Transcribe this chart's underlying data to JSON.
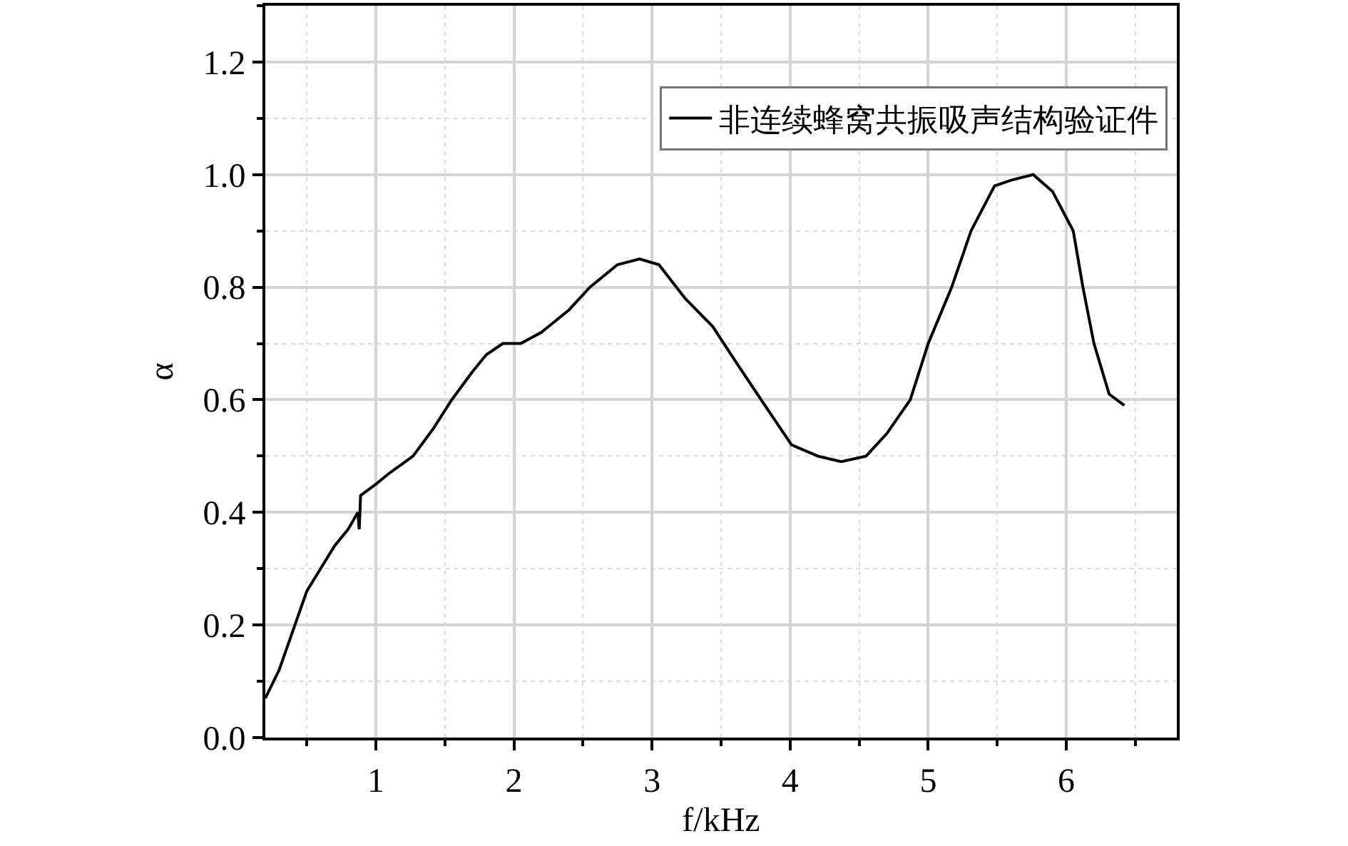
{
  "chart_data": {
    "type": "line",
    "xlabel": "f/kHz",
    "ylabel": "α",
    "xlim": [
      0.2,
      6.8
    ],
    "ylim": [
      0,
      1.3
    ],
    "xticks": [
      1,
      2,
      3,
      4,
      5,
      6
    ],
    "yticks": [
      {
        "value": 0,
        "label": "0.0"
      },
      0.2,
      0.4,
      0.6,
      0.8,
      {
        "value": 1,
        "label": "1.0"
      },
      1.2
    ],
    "grid": true,
    "legend": "top right",
    "line_style": "solid",
    "marker": "none",
    "series": [
      {
        "name": "非连续蜂窝共振吸声结构验证件",
        "color": "#000000",
        "x": [
          0.2,
          0.3,
          0.4,
          0.5,
          0.6,
          0.7,
          0.8,
          0.87,
          0.88,
          0.89,
          1.0,
          1.1,
          1.27,
          1.42,
          1.55,
          1.7,
          1.8,
          1.92,
          2.05,
          2.2,
          2.4,
          2.55,
          2.75,
          2.91,
          3.05,
          3.24,
          3.44,
          3.6,
          3.79,
          4.01,
          4.2,
          4.37,
          4.55,
          4.7,
          4.87,
          5.0,
          5.17,
          5.31,
          5.48,
          5.6,
          5.76,
          5.9,
          6.05,
          6.12,
          6.2,
          6.31,
          6.42
        ],
        "values": [
          0.07,
          0.12,
          0.19,
          0.26,
          0.3,
          0.34,
          0.37,
          0.4,
          0.37,
          0.43,
          0.45,
          0.47,
          0.5,
          0.55,
          0.6,
          0.65,
          0.68,
          0.7,
          0.7,
          0.72,
          0.76,
          0.8,
          0.84,
          0.85,
          0.84,
          0.78,
          0.73,
          0.67,
          0.6,
          0.52,
          0.5,
          0.49,
          0.5,
          0.54,
          0.6,
          0.7,
          0.8,
          0.9,
          0.98,
          0.99,
          1.0,
          0.97,
          0.9,
          0.8,
          0.7,
          0.61,
          0.59
        ]
      }
    ]
  }
}
